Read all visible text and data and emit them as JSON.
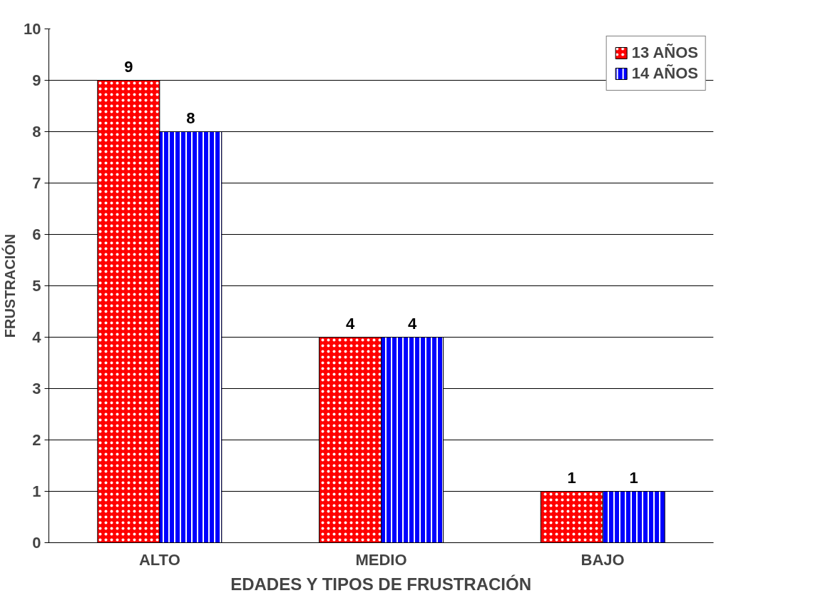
{
  "chart_data": {
    "type": "bar",
    "xlabel": "EDADES Y TIPOS DE FRUSTRACIÓN",
    "ylabel": "FRUSTRACIÓN",
    "categories": [
      "ALTO",
      "MEDIO",
      "BAJO"
    ],
    "series": [
      {
        "name": "13 AÑOS",
        "color": "#ff0000",
        "values": [
          9,
          4,
          1
        ]
      },
      {
        "name": "14 AÑOS",
        "color": "#0000ff",
        "values": [
          8,
          4,
          1
        ]
      }
    ],
    "ylim": [
      0,
      10
    ],
    "yticks": [
      0,
      1,
      2,
      3,
      4,
      5,
      6,
      7,
      8,
      9,
      10
    ],
    "grid": "y",
    "legend": "top right",
    "data_labels": true
  }
}
